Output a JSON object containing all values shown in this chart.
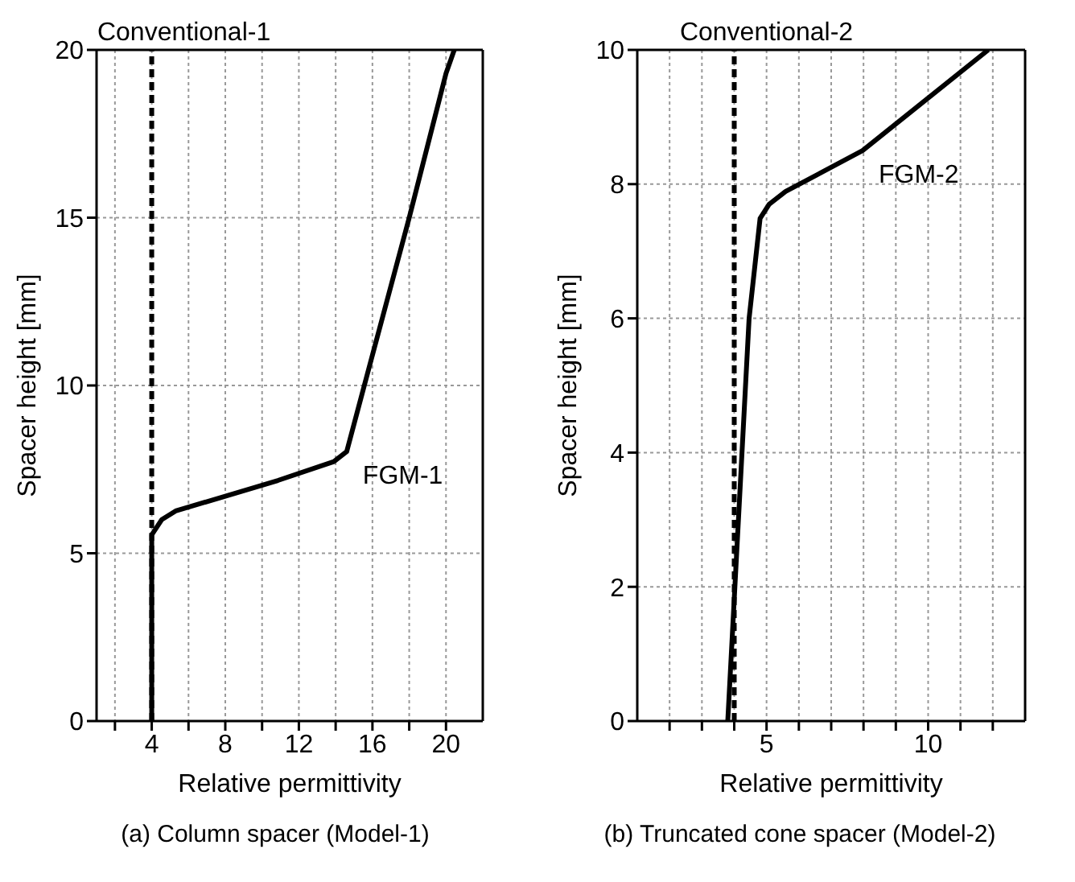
{
  "chart_data": [
    {
      "type": "line",
      "xlabel": "Relative permittivity",
      "ylabel": "Spacer height [mm]",
      "xlim": [
        1,
        22
      ],
      "ylim": [
        0,
        20
      ],
      "xticks": [
        {
          "value": 2,
          "label": null
        },
        4,
        {
          "value": 6,
          "label": null
        },
        8,
        {
          "value": 10,
          "label": null
        },
        12,
        {
          "value": 14,
          "label": null
        },
        16,
        {
          "value": 18,
          "label": null
        },
        20
      ],
      "yticks": [
        0,
        5,
        10,
        15,
        20
      ],
      "grid": true,
      "marker": "none",
      "series": [
        {
          "color": "#000000",
          "line_style": "dashed",
          "x": [
            4,
            4
          ],
          "values": [
            0,
            20
          ]
        },
        {
          "color": "#000000",
          "line_style": "solid",
          "x": [
            4,
            4,
            4.54,
            5.3,
            10.86,
            13.9,
            14.6,
            15.9,
            18,
            20,
            20.45
          ],
          "values": [
            0,
            5.55,
            6,
            6.26,
            7.17,
            7.73,
            8.03,
            10.7,
            15,
            19.3,
            20
          ]
        }
      ],
      "annotations": [
        {
          "text": "Conventional-1",
          "x": 4,
          "y": 20
        },
        {
          "text": "FGM-1",
          "x": 14.6,
          "y": 8.03
        },
        "(a) Column spacer (Model-1)"
      ]
    },
    {
      "type": "line",
      "xlabel": "Relative permittivity",
      "ylabel": "Spacer height [mm]",
      "xlim": [
        1,
        13
      ],
      "ylim": [
        0,
        10
      ],
      "xticks": [
        {
          "value": 2,
          "label": null
        },
        {
          "value": 3,
          "label": null
        },
        {
          "value": 4,
          "label": null
        },
        5,
        {
          "value": 6,
          "label": null
        },
        {
          "value": 7,
          "label": null
        },
        {
          "value": 8,
          "label": null
        },
        {
          "value": 9,
          "label": null
        },
        10,
        {
          "value": 11,
          "label": null
        },
        {
          "value": 12,
          "label": null
        }
      ],
      "yticks": [
        0,
        2,
        4,
        6,
        8,
        10
      ],
      "grid": true,
      "marker": "none",
      "series": [
        {
          "color": "#000000",
          "line_style": "dashed",
          "x": [
            4,
            4
          ],
          "values": [
            0,
            10
          ]
        },
        {
          "color": "#000000",
          "line_style": "solid",
          "x": [
            3.8,
            4.46,
            4.8,
            5.08,
            5.59,
            7.97,
            11.86
          ],
          "values": [
            0,
            6,
            7.49,
            7.7,
            7.89,
            8.5,
            10
          ]
        }
      ],
      "annotations": [
        {
          "text": "Conventional-2",
          "x": 4,
          "y": 10
        },
        {
          "text": "FGM-2",
          "x": 7.97,
          "y": 8.5
        },
        "(b) Truncated cone spacer (Model-2)"
      ]
    }
  ]
}
